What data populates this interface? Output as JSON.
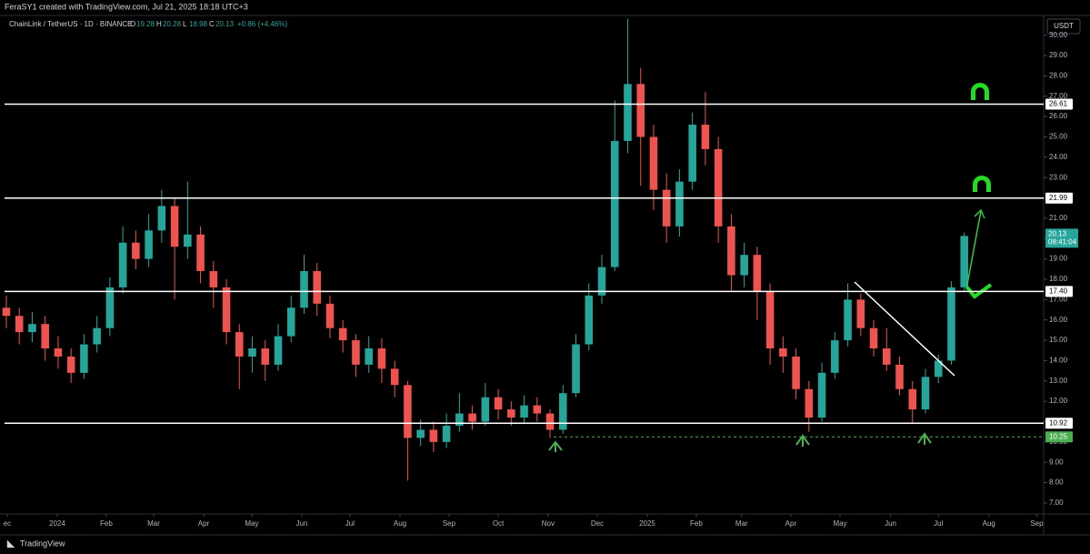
{
  "attribution": "FeraSY1 created with TradingView.com, Jul 21, 2025 18:18 UTC+3",
  "footer": "TradingView",
  "chart_data": {
    "type": "candlestick",
    "symbol": "ChainLink / TetherUS · 1D · BINANCE",
    "ohlc": [
      {
        "key": "O",
        "value": "19.28"
      },
      {
        "key": "H",
        "value": "20.28"
      },
      {
        "key": "L",
        "value": "18.98"
      },
      {
        "key": "C",
        "value": "20.13"
      }
    ],
    "change": "+0.86 (+4.46%)",
    "currency": "USDT",
    "up_color": "#26a69a",
    "down_color": "#ef5350",
    "candles": [
      [
        16.6,
        17.2,
        15.6,
        16.2
      ],
      [
        16.2,
        16.6,
        14.8,
        15.4
      ],
      [
        15.4,
        16.4,
        14.9,
        15.8
      ],
      [
        15.8,
        16.2,
        14.0,
        14.6
      ],
      [
        14.6,
        15.2,
        13.6,
        14.2
      ],
      [
        14.2,
        14.6,
        12.9,
        13.4
      ],
      [
        13.4,
        15.3,
        13.1,
        14.8
      ],
      [
        14.8,
        16.2,
        14.4,
        15.6
      ],
      [
        15.6,
        18.1,
        15.2,
        17.6
      ],
      [
        17.6,
        20.6,
        17.3,
        19.8
      ],
      [
        19.8,
        20.4,
        18.5,
        19.0
      ],
      [
        19.0,
        21.2,
        18.6,
        20.4
      ],
      [
        20.4,
        22.4,
        19.8,
        21.6
      ],
      [
        21.6,
        22.0,
        17.0,
        19.6
      ],
      [
        19.6,
        22.8,
        19.0,
        20.2
      ],
      [
        20.2,
        20.6,
        17.8,
        18.4
      ],
      [
        18.4,
        18.9,
        16.6,
        17.6
      ],
      [
        17.6,
        18.0,
        14.8,
        15.4
      ],
      [
        15.4,
        15.8,
        12.6,
        14.2
      ],
      [
        14.2,
        15.2,
        13.4,
        14.6
      ],
      [
        14.6,
        15.0,
        13.0,
        13.8
      ],
      [
        13.8,
        15.8,
        13.5,
        15.2
      ],
      [
        15.2,
        17.2,
        14.9,
        16.6
      ],
      [
        16.6,
        19.2,
        16.3,
        18.4
      ],
      [
        18.4,
        18.8,
        16.2,
        16.8
      ],
      [
        16.8,
        17.2,
        15.1,
        15.6
      ],
      [
        15.6,
        16.0,
        14.4,
        15.0
      ],
      [
        15.0,
        15.3,
        13.2,
        13.8
      ],
      [
        13.8,
        15.2,
        13.4,
        14.6
      ],
      [
        14.6,
        15.1,
        12.9,
        13.6
      ],
      [
        13.6,
        14.0,
        12.2,
        12.8
      ],
      [
        12.8,
        13.0,
        8.1,
        10.2
      ],
      [
        10.2,
        11.1,
        9.8,
        10.6
      ],
      [
        10.6,
        11.0,
        9.5,
        10.0
      ],
      [
        10.0,
        11.4,
        9.7,
        10.8
      ],
      [
        10.8,
        12.4,
        10.5,
        11.4
      ],
      [
        11.4,
        11.8,
        10.6,
        11.0
      ],
      [
        11.0,
        12.9,
        10.8,
        12.2
      ],
      [
        12.2,
        12.6,
        11.1,
        11.6
      ],
      [
        11.6,
        12.0,
        10.8,
        11.2
      ],
      [
        11.2,
        12.3,
        10.9,
        11.8
      ],
      [
        11.8,
        12.2,
        11.0,
        11.4
      ],
      [
        11.4,
        11.6,
        10.2,
        10.6
      ],
      [
        10.6,
        12.8,
        10.4,
        12.4
      ],
      [
        12.4,
        15.3,
        12.2,
        14.8
      ],
      [
        14.8,
        17.8,
        14.5,
        17.2
      ],
      [
        17.2,
        19.2,
        16.8,
        18.6
      ],
      [
        18.6,
        26.8,
        18.4,
        24.8
      ],
      [
        24.8,
        30.8,
        24.2,
        27.6
      ],
      [
        27.6,
        28.4,
        22.6,
        25.0
      ],
      [
        25.0,
        25.6,
        21.4,
        22.4
      ],
      [
        22.4,
        23.2,
        19.8,
        20.6
      ],
      [
        20.6,
        23.4,
        20.1,
        22.8
      ],
      [
        22.8,
        26.2,
        22.4,
        25.6
      ],
      [
        25.6,
        27.2,
        23.6,
        24.4
      ],
      [
        24.4,
        25.0,
        19.8,
        20.6
      ],
      [
        20.6,
        21.2,
        17.4,
        18.2
      ],
      [
        18.2,
        19.8,
        17.6,
        19.2
      ],
      [
        19.2,
        19.6,
        16.0,
        17.4
      ],
      [
        17.4,
        17.8,
        13.8,
        14.6
      ],
      [
        14.6,
        15.2,
        13.4,
        14.2
      ],
      [
        14.2,
        14.6,
        12.1,
        12.6
      ],
      [
        12.6,
        13.0,
        10.5,
        11.2
      ],
      [
        11.2,
        13.9,
        11.0,
        13.4
      ],
      [
        13.4,
        15.4,
        13.1,
        15.0
      ],
      [
        15.0,
        17.8,
        14.7,
        17.0
      ],
      [
        17.0,
        17.3,
        15.2,
        15.6
      ],
      [
        15.6,
        16.0,
        14.2,
        14.6
      ],
      [
        14.6,
        15.6,
        13.5,
        13.8
      ],
      [
        13.8,
        14.2,
        12.3,
        12.6
      ],
      [
        12.6,
        13.0,
        10.9,
        11.6
      ],
      [
        11.6,
        13.6,
        11.4,
        13.2
      ],
      [
        13.2,
        14.3,
        12.9,
        14.0
      ],
      [
        14.0,
        17.9,
        13.8,
        17.6
      ],
      [
        17.6,
        20.3,
        17.4,
        20.13
      ]
    ],
    "xlim": [
      -0.49,
      80.13
    ],
    "xticks": [
      {
        "value": 0.07,
        "label": "ec"
      },
      {
        "value": 3.93,
        "label": "2024"
      },
      {
        "value": 7.72,
        "label": "Feb"
      },
      {
        "value": 11.38,
        "label": "Mar"
      },
      {
        "value": 15.24,
        "label": "Apr"
      },
      {
        "value": 18.96,
        "label": "May"
      },
      {
        "value": 22.82,
        "label": "Jun"
      },
      {
        "value": 26.54,
        "label": "Jul"
      },
      {
        "value": 30.41,
        "label": "Aug"
      },
      {
        "value": 34.2,
        "label": "Sep"
      },
      {
        "value": 38.0,
        "label": "Oct"
      },
      {
        "value": 41.85,
        "label": "Nov"
      },
      {
        "value": 45.65,
        "label": "Dec"
      },
      {
        "value": 49.51,
        "label": "2025"
      },
      {
        "value": 53.3,
        "label": "Feb"
      },
      {
        "value": 56.8,
        "label": "Mar"
      },
      {
        "value": 60.6,
        "label": "Apr"
      },
      {
        "value": 64.4,
        "label": "May"
      },
      {
        "value": 68.3,
        "label": "Jun"
      },
      {
        "value": 72.0,
        "label": "Jul"
      },
      {
        "value": 75.9,
        "label": "Aug"
      },
      {
        "value": 79.6,
        "label": "Sep"
      }
    ],
    "ylim": [
      6.46,
      30.97
    ],
    "yticks": [
      {
        "value": 7,
        "label": "7.00"
      },
      {
        "value": 8,
        "label": "8.00"
      },
      {
        "value": 9,
        "label": "9.00"
      },
      {
        "value": 10,
        "label": "10.00"
      },
      {
        "value": 11,
        "label": "11.00"
      },
      {
        "value": 12,
        "label": "12.00"
      },
      {
        "value": 13,
        "label": "13.00"
      },
      {
        "value": 14,
        "label": "14.00"
      },
      {
        "value": 15,
        "label": "15.00"
      },
      {
        "value": 16,
        "label": "16.00"
      },
      {
        "value": 17,
        "label": "17.00"
      },
      {
        "value": 18,
        "label": "18.00"
      },
      {
        "value": 19,
        "label": "19.00"
      },
      {
        "value": 20,
        "label": "20.00"
      },
      {
        "value": 21,
        "label": "21.00"
      },
      {
        "value": 22,
        "label": "22.00"
      },
      {
        "value": 23,
        "label": "23.00"
      },
      {
        "value": 24,
        "label": "24.00"
      },
      {
        "value": 25,
        "label": "25.00"
      },
      {
        "value": 26,
        "label": "26.00"
      },
      {
        "value": 27,
        "label": "27.00"
      },
      {
        "value": 28,
        "label": "28.00"
      },
      {
        "value": 29,
        "label": "29.00"
      },
      {
        "value": 30,
        "label": "30.00"
      }
    ],
    "levels": [
      26.61,
      21.99,
      {
        "value": 17.4,
        "label": "17.40"
      },
      10.92
    ],
    "support": 10.25,
    "support_color": "#4caf50",
    "last_price": 20.13,
    "countdown": "08:41:04"
  }
}
